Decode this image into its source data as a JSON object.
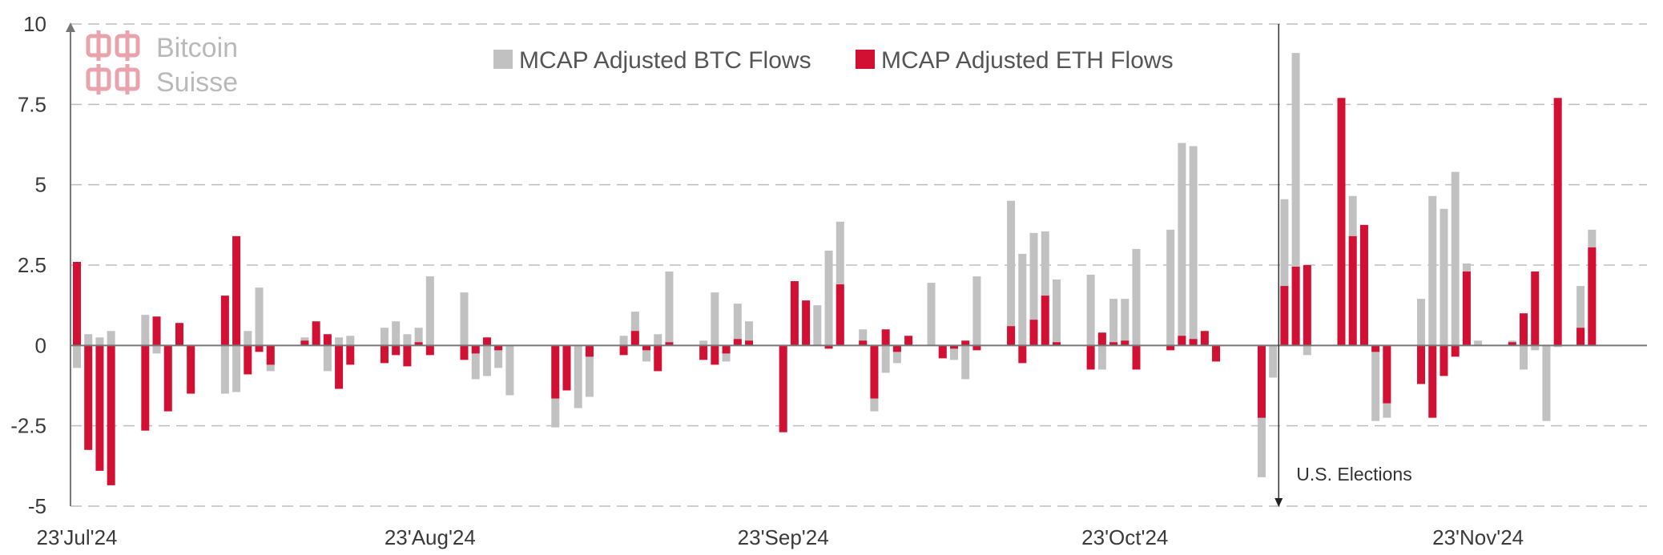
{
  "logo": {
    "line1": "Bitcoin",
    "line2": "Suisse",
    "color": "#e8a3ad"
  },
  "chart_data": {
    "type": "bar",
    "stacked": true,
    "ylim": [
      -5,
      10
    ],
    "yticks": [
      -5,
      -2.5,
      0,
      2.5,
      5,
      7.5,
      10
    ],
    "ytick_labels": [
      "-5",
      "-2.5",
      "0",
      "2.5",
      "5",
      "7.5",
      "10"
    ],
    "x_range": [
      0,
      136
    ],
    "xticks": [
      {
        "x": 0,
        "label": "23'Jul'24"
      },
      {
        "x": 31,
        "label": "23'Aug'24"
      },
      {
        "x": 62,
        "label": "23'Sep'24"
      },
      {
        "x": 92,
        "label": "23'Oct'24"
      },
      {
        "x": 123,
        "label": "23'Nov'24"
      }
    ],
    "grid": "horizontal dashed",
    "legend_position": "top-center",
    "annotation": {
      "text": "U.S. Elections",
      "x": 105.5
    },
    "series": [
      {
        "name": "MCAP Adjusted BTC Flows",
        "color": "#c1c1c1",
        "points": [
          [
            0,
            -0.7
          ],
          [
            1,
            0.35
          ],
          [
            2,
            0.25
          ],
          [
            3,
            0.45
          ],
          [
            6,
            0.95
          ],
          [
            7,
            -0.25
          ],
          [
            10,
            -0.35
          ],
          [
            13,
            -1.5
          ],
          [
            14,
            -1.45
          ],
          [
            15,
            0.45
          ],
          [
            16,
            1.8
          ],
          [
            17,
            -0.8
          ],
          [
            20,
            0.25
          ],
          [
            21,
            0.45
          ],
          [
            22,
            -0.8
          ],
          [
            23,
            0.25
          ],
          [
            24,
            0.3
          ],
          [
            27,
            0.55
          ],
          [
            28,
            0.75
          ],
          [
            29,
            0.35
          ],
          [
            30,
            0.55
          ],
          [
            31,
            2.15
          ],
          [
            34,
            1.65
          ],
          [
            35,
            -1.05
          ],
          [
            36,
            -0.95
          ],
          [
            37,
            -0.7
          ],
          [
            38,
            -1.55
          ],
          [
            42,
            -2.55
          ],
          [
            43,
            -1.3
          ],
          [
            44,
            -1.95
          ],
          [
            45,
            -1.6
          ],
          [
            48,
            0.3
          ],
          [
            49,
            1.05
          ],
          [
            50,
            -0.5
          ],
          [
            51,
            0.35
          ],
          [
            52,
            2.3
          ],
          [
            55,
            0.15
          ],
          [
            56,
            1.65
          ],
          [
            57,
            -0.5
          ],
          [
            58,
            1.3
          ],
          [
            59,
            0.75
          ],
          [
            62,
            -0.2
          ],
          [
            64,
            0.25
          ],
          [
            65,
            1.25
          ],
          [
            66,
            2.95
          ],
          [
            67,
            3.85
          ],
          [
            69,
            0.5
          ],
          [
            70,
            -2.05
          ],
          [
            71,
            -0.85
          ],
          [
            72,
            -0.55
          ],
          [
            75,
            1.95
          ],
          [
            76,
            -0.4
          ],
          [
            77,
            -0.45
          ],
          [
            78,
            -1.05
          ],
          [
            79,
            2.15
          ],
          [
            82,
            4.5
          ],
          [
            83,
            2.85
          ],
          [
            84,
            3.5
          ],
          [
            85,
            3.55
          ],
          [
            86,
            2.05
          ],
          [
            89,
            2.2
          ],
          [
            90,
            -0.75
          ],
          [
            91,
            1.45
          ],
          [
            92,
            1.45
          ],
          [
            93,
            3.0
          ],
          [
            96,
            3.6
          ],
          [
            97,
            6.3
          ],
          [
            98,
            6.2
          ],
          [
            104,
            -4.1
          ],
          [
            105,
            -1.0
          ],
          [
            106,
            4.55
          ],
          [
            107,
            9.1
          ],
          [
            108,
            -0.3
          ],
          [
            111,
            0.15
          ],
          [
            112,
            4.65
          ],
          [
            113,
            2.95
          ],
          [
            114,
            -2.35
          ],
          [
            115,
            -2.25
          ],
          [
            118,
            1.45
          ],
          [
            119,
            4.65
          ],
          [
            120,
            4.25
          ],
          [
            121,
            5.4
          ],
          [
            122,
            2.55
          ],
          [
            123,
            0.15
          ],
          [
            126,
            0.15
          ],
          [
            127,
            -0.75
          ],
          [
            128,
            -0.15
          ],
          [
            129,
            -2.35
          ],
          [
            130,
            -0.05
          ],
          [
            132,
            1.85
          ],
          [
            133,
            3.6
          ]
        ]
      },
      {
        "name": "MCAP Adjusted ETH Flows",
        "color": "#d21034",
        "points": [
          [
            0,
            2.6
          ],
          [
            1,
            -3.25
          ],
          [
            2,
            -3.9
          ],
          [
            3,
            -4.35
          ],
          [
            6,
            -2.65
          ],
          [
            7,
            0.9
          ],
          [
            8,
            -2.05
          ],
          [
            9,
            0.7
          ],
          [
            10,
            -1.5
          ],
          [
            13,
            1.55
          ],
          [
            14,
            3.4
          ],
          [
            15,
            -0.9
          ],
          [
            16,
            -0.2
          ],
          [
            17,
            -0.6
          ],
          [
            20,
            0.15
          ],
          [
            21,
            0.75
          ],
          [
            22,
            0.35
          ],
          [
            23,
            -1.35
          ],
          [
            24,
            -0.6
          ],
          [
            27,
            -0.55
          ],
          [
            28,
            -0.3
          ],
          [
            29,
            -0.65
          ],
          [
            30,
            0.1
          ],
          [
            31,
            -0.3
          ],
          [
            34,
            -0.45
          ],
          [
            35,
            -0.25
          ],
          [
            36,
            0.25
          ],
          [
            37,
            -0.15
          ],
          [
            42,
            -1.65
          ],
          [
            43,
            -1.4
          ],
          [
            45,
            -0.35
          ],
          [
            48,
            -0.3
          ],
          [
            49,
            0.45
          ],
          [
            50,
            -0.15
          ],
          [
            51,
            -0.8
          ],
          [
            52,
            0.1
          ],
          [
            55,
            -0.45
          ],
          [
            56,
            -0.6
          ],
          [
            57,
            -0.25
          ],
          [
            58,
            0.2
          ],
          [
            59,
            0.15
          ],
          [
            62,
            -2.7
          ],
          [
            63,
            2.0
          ],
          [
            64,
            1.4
          ],
          [
            66,
            -0.1
          ],
          [
            67,
            1.9
          ],
          [
            69,
            0.15
          ],
          [
            70,
            -1.65
          ],
          [
            71,
            0.5
          ],
          [
            72,
            -0.2
          ],
          [
            73,
            0.3
          ],
          [
            76,
            -0.4
          ],
          [
            77,
            -0.1
          ],
          [
            78,
            0.15
          ],
          [
            79,
            -0.15
          ],
          [
            82,
            0.6
          ],
          [
            83,
            -0.55
          ],
          [
            84,
            0.8
          ],
          [
            85,
            1.55
          ],
          [
            86,
            0.1
          ],
          [
            89,
            -0.75
          ],
          [
            90,
            0.4
          ],
          [
            91,
            0.1
          ],
          [
            92,
            0.15
          ],
          [
            93,
            -0.75
          ],
          [
            96,
            -0.15
          ],
          [
            97,
            0.3
          ],
          [
            98,
            0.2
          ],
          [
            99,
            0.45
          ],
          [
            100,
            -0.5
          ],
          [
            104,
            -2.25
          ],
          [
            106,
            1.85
          ],
          [
            107,
            2.45
          ],
          [
            108,
            2.5
          ],
          [
            111,
            7.7
          ],
          [
            112,
            3.4
          ],
          [
            113,
            3.75
          ],
          [
            114,
            -0.2
          ],
          [
            115,
            -1.8
          ],
          [
            118,
            -1.2
          ],
          [
            119,
            -2.25
          ],
          [
            120,
            -0.95
          ],
          [
            121,
            -0.35
          ],
          [
            122,
            2.3
          ],
          [
            126,
            0.1
          ],
          [
            127,
            1.0
          ],
          [
            128,
            2.3
          ],
          [
            130,
            7.7
          ],
          [
            132,
            0.55
          ],
          [
            133,
            3.05
          ]
        ]
      }
    ]
  }
}
